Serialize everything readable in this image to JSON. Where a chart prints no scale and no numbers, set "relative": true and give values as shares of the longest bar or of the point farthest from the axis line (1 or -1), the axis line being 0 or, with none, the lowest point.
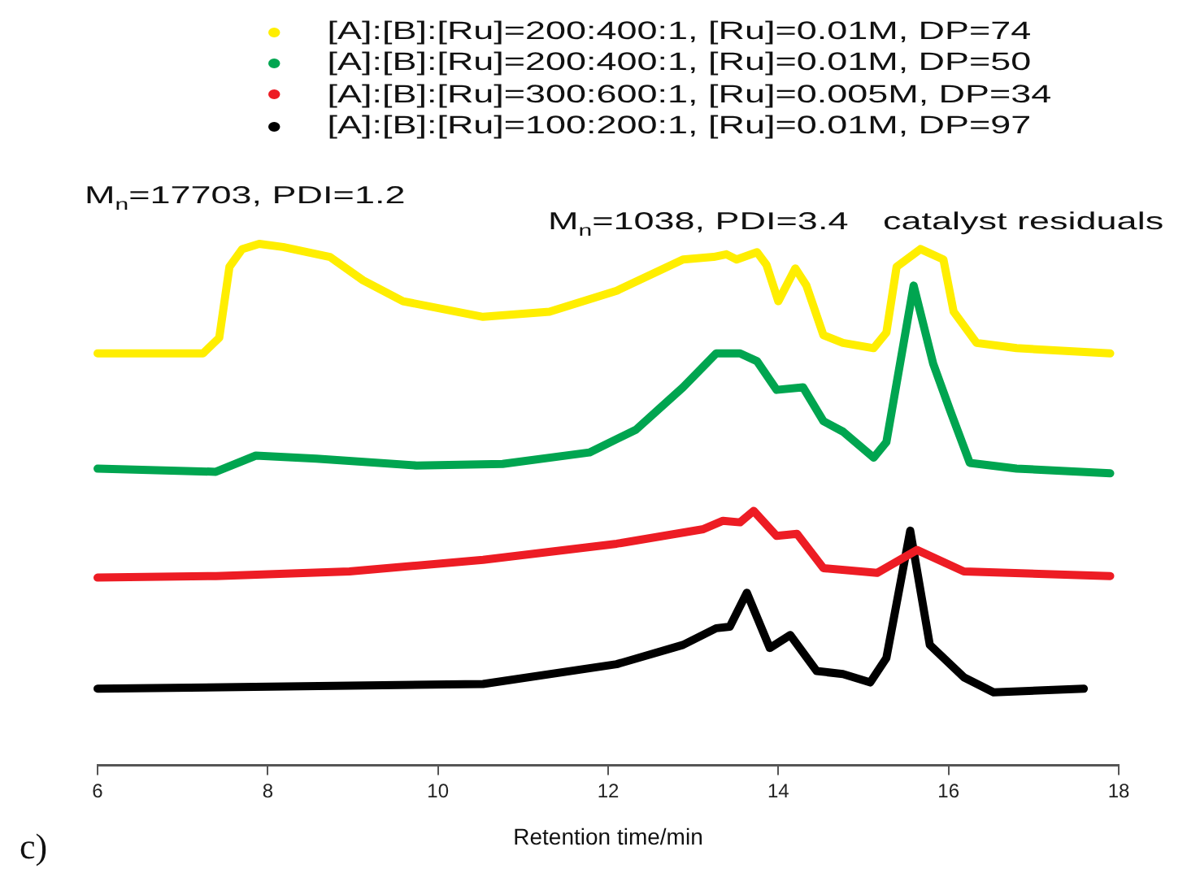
{
  "chart_data": {
    "type": "line",
    "relative": true,
    "xlabel": "Retention time/min",
    "xlim": [
      6,
      18
    ],
    "xticks": [
      6,
      8,
      10,
      12,
      14,
      16,
      18
    ],
    "grid": false,
    "legend": "top",
    "marker": "none",
    "line_style": "solid",
    "annotations": [
      "M$_{n}$=17703, PDI=1.2",
      "M$_{n}$=1038, PDI=3.4",
      "catalyst residuals",
      "c)"
    ],
    "series": [
      {
        "name": "[A]:[B]:[Ru]=200:400:1, [Ru]=0.01M, DP=74",
        "color": "#ffee00",
        "x": [
          6.0,
          7.24,
          7.43,
          7.55,
          7.7,
          7.9,
          8.18,
          8.73,
          9.12,
          9.59,
          10.53,
          11.31,
          12.1,
          12.88,
          13.24,
          13.39,
          13.51,
          13.75,
          13.86,
          14.0,
          14.2,
          14.33,
          14.53,
          14.76,
          15.12,
          15.27,
          15.39,
          15.67,
          15.94,
          16.06,
          16.33,
          16.8,
          17.9
        ],
        "values": [
          0.79,
          0.79,
          0.82,
          0.956,
          0.99,
          1.0,
          0.994,
          0.975,
          0.93,
          0.89,
          0.86,
          0.87,
          0.91,
          0.97,
          0.975,
          0.98,
          0.97,
          0.984,
          0.96,
          0.89,
          0.953,
          0.92,
          0.825,
          0.81,
          0.8,
          0.83,
          0.956,
          0.99,
          0.97,
          0.87,
          0.81,
          0.8,
          0.79
        ]
      },
      {
        "name": "[A]:[B]:[Ru]=200:400:1, [Ru]=0.01M, DP=50",
        "color": "#00a550",
        "x": [
          6.0,
          7.39,
          7.86,
          8.57,
          9.75,
          10.76,
          11.78,
          12.33,
          12.88,
          13.27,
          13.55,
          13.75,
          13.98,
          14.29,
          14.53,
          14.76,
          15.12,
          15.27,
          15.59,
          15.82,
          16.02,
          16.25,
          16.8,
          17.9
        ],
        "values": [
          0.569,
          0.563,
          0.594,
          0.588,
          0.575,
          0.578,
          0.6,
          0.644,
          0.725,
          0.79,
          0.79,
          0.775,
          0.72,
          0.725,
          0.66,
          0.64,
          0.59,
          0.62,
          0.92,
          0.77,
          0.68,
          0.58,
          0.569,
          0.56
        ]
      },
      {
        "name": "[A]:[B]:[Ru]=300:600:1, [Ru]=0.005M, DP=34",
        "color": "#ed1c24",
        "x": [
          6.0,
          7.39,
          8.96,
          10.53,
          12.1,
          13.12,
          13.35,
          13.55,
          13.71,
          13.98,
          14.22,
          14.53,
          15.16,
          15.63,
          16.18,
          17.9
        ],
        "values": [
          0.36,
          0.363,
          0.372,
          0.394,
          0.425,
          0.453,
          0.469,
          0.466,
          0.488,
          0.44,
          0.444,
          0.378,
          0.369,
          0.413,
          0.372,
          0.363
        ]
      },
      {
        "name": "[A]:[B]:[Ru]=100:200:1, [Ru]=0.01M, DP=97",
        "color": "#000000",
        "x": [
          6.0,
          10.53,
          12.1,
          12.88,
          13.27,
          13.43,
          13.63,
          13.9,
          14.14,
          14.45,
          14.76,
          15.08,
          15.27,
          15.55,
          15.78,
          16.18,
          16.53,
          17.59
        ],
        "values": [
          0.147,
          0.156,
          0.194,
          0.231,
          0.263,
          0.266,
          0.331,
          0.225,
          0.25,
          0.181,
          0.175,
          0.159,
          0.206,
          0.45,
          0.231,
          0.169,
          0.14,
          0.147
        ]
      }
    ]
  }
}
